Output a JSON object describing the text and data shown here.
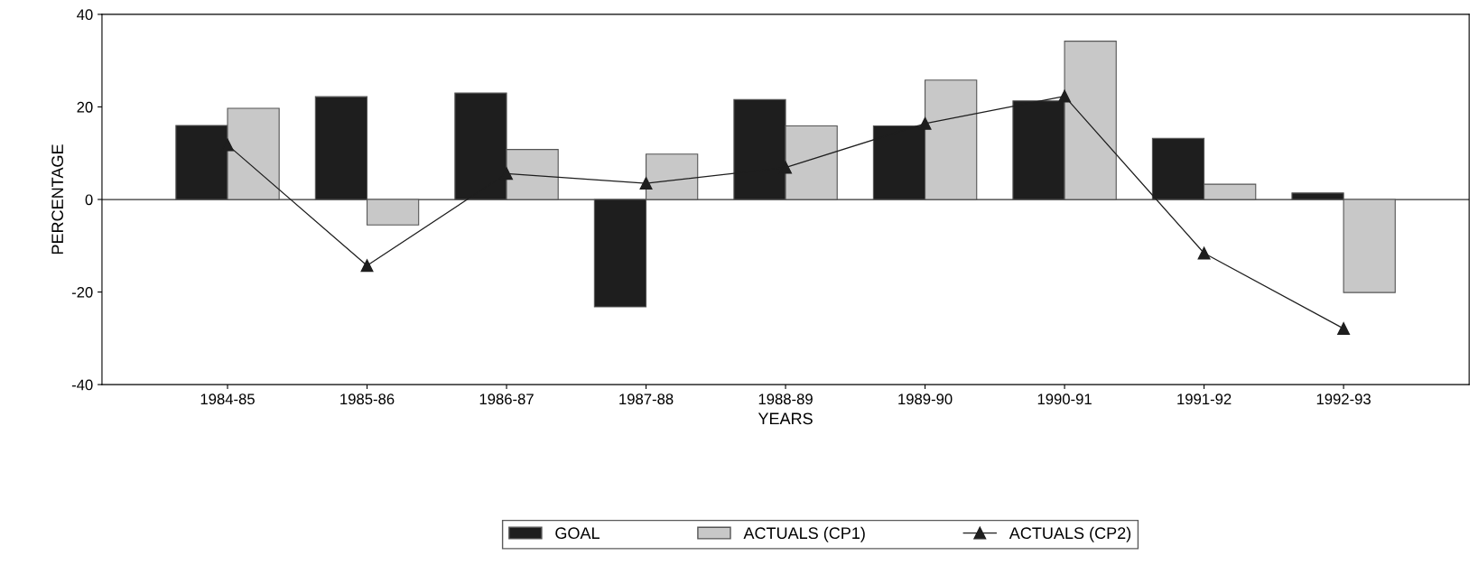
{
  "chart_data": {
    "type": "bar",
    "xlabel": "YEARS",
    "ylabel": "PERCENTAGE",
    "categories": [
      "1984-85",
      "1985-86",
      "1986-87",
      "1987-88",
      "1988-89",
      "1989-90",
      "1990-91",
      "1991-92",
      "1992-93"
    ],
    "series": [
      {
        "name": "GOAL",
        "color": "#1e1e1e",
        "values": [
          16.0,
          22.2,
          23.0,
          -23.2,
          21.6,
          15.9,
          21.3,
          13.2,
          1.4
        ]
      },
      {
        "name": "ACTUALS (CP1)",
        "color": "#c8c8c8",
        "values": [
          19.7,
          -5.5,
          10.8,
          9.8,
          15.9,
          25.8,
          34.2,
          3.3,
          -20.1
        ]
      },
      {
        "name": "ACTUALS (CP2)",
        "type": "line",
        "color": "#1e1e1e",
        "marker": "triangle",
        "values": [
          11.8,
          -14.3,
          5.6,
          3.5,
          6.9,
          16.4,
          22.3,
          -11.6,
          -27.9
        ]
      }
    ],
    "ylim": [
      -40,
      40
    ],
    "yticks": [
      -40,
      -20,
      0,
      20,
      40
    ],
    "ref_lines": [
      {
        "axis": "y",
        "value": 0
      }
    ],
    "grid": false,
    "legend": "bottom"
  }
}
